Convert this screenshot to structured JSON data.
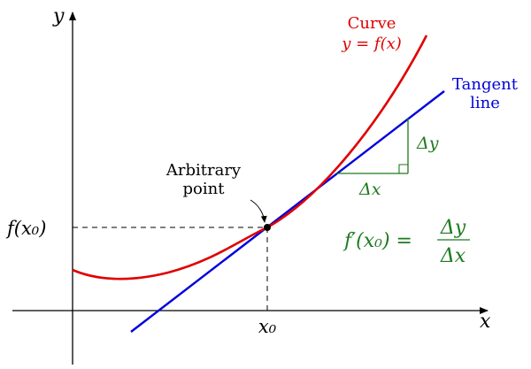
{
  "axes": {
    "x_label": "x",
    "y_label": "y"
  },
  "curve": {
    "label_line1": "Curve",
    "label_line2": "y = f(x)",
    "color": "#e00000"
  },
  "tangent": {
    "label_line1": "Tangent",
    "label_line2": "line",
    "color": "#0000dd"
  },
  "point": {
    "label_line1": "Arbitrary",
    "label_line2": "point",
    "x_tick_label": "x₀",
    "y_tick_label": "f(x₀)"
  },
  "slope": {
    "dx_label": "Δx",
    "dy_label": "Δy",
    "formula_lhs": "f′(x₀) =",
    "formula_num": "Δy",
    "formula_den": "Δx",
    "color": "#1e7a1e"
  }
}
